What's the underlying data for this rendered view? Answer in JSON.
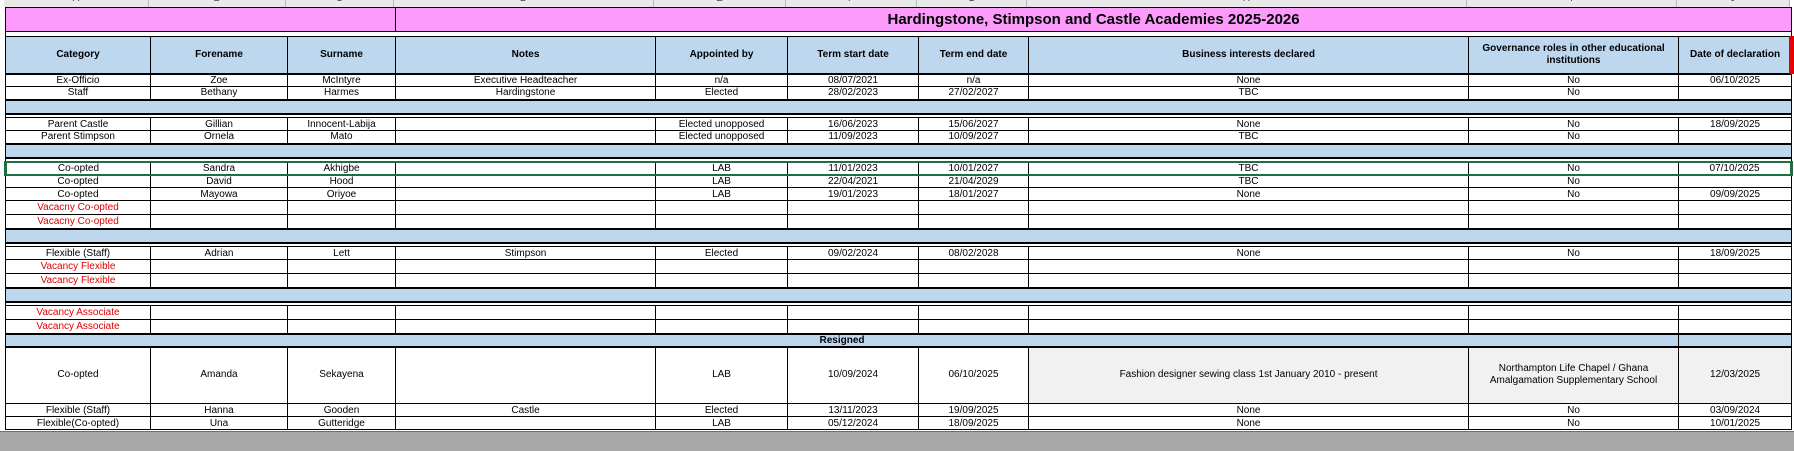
{
  "title": "Hardingstone, Stimpson and Castle Academies 2025-2026",
  "banner": {
    "resigned_label": "Resigned"
  },
  "column_letters": [
    "A",
    "B",
    "C",
    "D",
    "E",
    "F",
    "G",
    "H",
    "I",
    "J"
  ],
  "columns": [
    "Category",
    "Forename",
    "Surname",
    "Notes",
    "Appointed by",
    "Term start date",
    "Term end date",
    "Business interests declared",
    "Governance roles in other educational institutions",
    "Date of declaration"
  ],
  "colors": {
    "title_pink": "#fd9bfd",
    "header_blue": "#bdd7ee",
    "vacancy_red": "#e00000",
    "selection_green": "#1a7240",
    "marker_red": "#e80000",
    "shaded_cell": "#f1f1f1",
    "bottom_band_gray": "#a9a9a9"
  },
  "rows": [
    {
      "type": "data",
      "cells": [
        "Ex-Officio",
        "Zoe",
        "McIntyre",
        "Executive Headteacher",
        "n/a",
        "08/07/2021",
        "n/a",
        "None",
        "No",
        "06/10/2025"
      ]
    },
    {
      "type": "data",
      "cells": [
        "Staff",
        "Bethany",
        "Harmes",
        "Hardingstone",
        "Elected",
        "28/02/2023",
        "27/02/2027",
        "TBC",
        "No",
        ""
      ]
    },
    {
      "type": "separator"
    },
    {
      "type": "spacer"
    },
    {
      "type": "data",
      "cells": [
        "Parent Castle",
        "Gillian",
        "Innocent-Labija",
        "",
        "Elected unopposed",
        "16/06/2023",
        "15/06/2027",
        "None",
        "No",
        "18/09/2025"
      ]
    },
    {
      "type": "data",
      "cells": [
        "Parent Stimpson",
        "Ornela",
        "Mato",
        "",
        "Elected unopposed",
        "11/09/2023",
        "10/09/2027",
        "TBC",
        "No",
        ""
      ]
    },
    {
      "type": "separator"
    },
    {
      "type": "spacer"
    },
    {
      "type": "data",
      "selected": true,
      "cells": [
        "Co-opted",
        "Sandra",
        "Akhigbe",
        "",
        "LAB",
        "11/01/2023",
        "10/01/2027",
        "TBC",
        "No",
        "07/10/2025"
      ]
    },
    {
      "type": "data",
      "cells": [
        "Co-opted",
        "David",
        "Hood",
        "",
        "LAB",
        "22/04/2021",
        "21/04/2029",
        "TBC",
        "No",
        ""
      ]
    },
    {
      "type": "data",
      "cells": [
        "Co-opted",
        "Mayowa",
        "Oriyoe",
        "",
        "LAB",
        "19/01/2023",
        "18/01/2027",
        "None",
        "No",
        "09/09/2025"
      ]
    },
    {
      "type": "vacancy",
      "cells": [
        "Vacacny Co-opted",
        "",
        "",
        "",
        "",
        "",
        "",
        "",
        "",
        ""
      ]
    },
    {
      "type": "vacancy",
      "cells": [
        "Vacacny Co-opted",
        "",
        "",
        "",
        "",
        "",
        "",
        "",
        "",
        ""
      ]
    },
    {
      "type": "separator"
    },
    {
      "type": "spacer"
    },
    {
      "type": "data",
      "cells": [
        "Flexible (Staff)",
        "Adrian",
        "Lett",
        "Stimpson",
        "Elected",
        "09/02/2024",
        "08/02/2028",
        "None",
        "No",
        "18/09/2025"
      ]
    },
    {
      "type": "vacancy",
      "cells": [
        "Vacancy Flexible",
        "",
        "",
        "",
        "",
        "",
        "",
        "",
        "",
        ""
      ]
    },
    {
      "type": "vacancy",
      "cells": [
        "Vacancy Flexible",
        "",
        "",
        "",
        "",
        "",
        "",
        "",
        "",
        ""
      ]
    },
    {
      "type": "separator"
    },
    {
      "type": "spacer"
    },
    {
      "type": "vacancy",
      "cells": [
        "Vacancy Associate",
        "",
        "",
        "",
        "",
        "",
        "",
        "",
        "",
        ""
      ]
    },
    {
      "type": "vacancy",
      "cells": [
        "Vacancy Associate",
        "",
        "",
        "",
        "",
        "",
        "",
        "",
        "",
        ""
      ]
    },
    {
      "type": "banner",
      "label": "Resigned"
    },
    {
      "type": "data",
      "tall": true,
      "shade_cols": [
        7,
        8,
        9
      ],
      "cells": [
        "Co-opted",
        "Amanda",
        "Sekayena",
        "",
        "LAB",
        "10/09/2024",
        "06/10/2025",
        "Fashion designer sewing class 1st January 2010 - present",
        "Northampton Life Chapel /  Ghana Amalgamation Supplementary School",
        "12/03/2025"
      ]
    },
    {
      "type": "data",
      "cells": [
        "Flexible (Staff)",
        "Hanna",
        "Gooden",
        "Castle",
        "Elected",
        "13/11/2023",
        "19/09/2025",
        "None",
        "No",
        "03/09/2024"
      ]
    },
    {
      "type": "data",
      "cells": [
        "Flexible(Co-opted)",
        "Una",
        "Gutteridge",
        "",
        "LAB",
        "05/12/2024",
        "18/09/2025",
        "None",
        "No",
        "10/01/2025"
      ]
    }
  ]
}
